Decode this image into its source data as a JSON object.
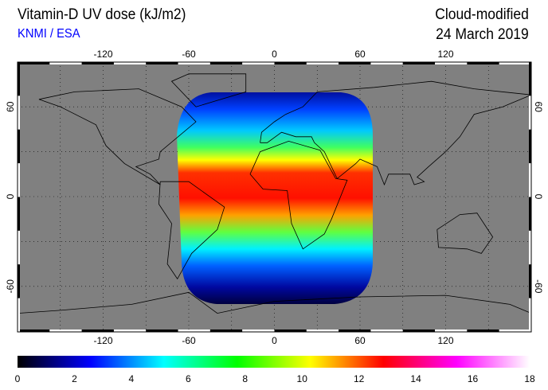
{
  "title": "Vitamin-D UV dose (kJ/m2)",
  "credit": "KNMI / ESA",
  "product": "Cloud-modified",
  "date": "24 March 2019",
  "lon_labels": [
    "-120",
    "-60",
    "0",
    "60",
    "120"
  ],
  "lon_values": [
    -120,
    -60,
    0,
    60,
    120
  ],
  "lat_labels": [
    "60",
    "0",
    "-60"
  ],
  "lat_values": [
    60,
    0,
    -60
  ],
  "colorbar": {
    "labels": [
      "0",
      "2",
      "4",
      "6",
      "8",
      "10",
      "12",
      "14",
      "16",
      "18"
    ],
    "min": 0,
    "max": 18,
    "colors": [
      "#000000",
      "#0000ff",
      "#00ffff",
      "#00ff00",
      "#ffff00",
      "#ff0000",
      "#ff00ff",
      "#ffffff"
    ]
  },
  "colors": {
    "ocean_land_nodata": "#808080",
    "credit": "#0000ff"
  }
}
